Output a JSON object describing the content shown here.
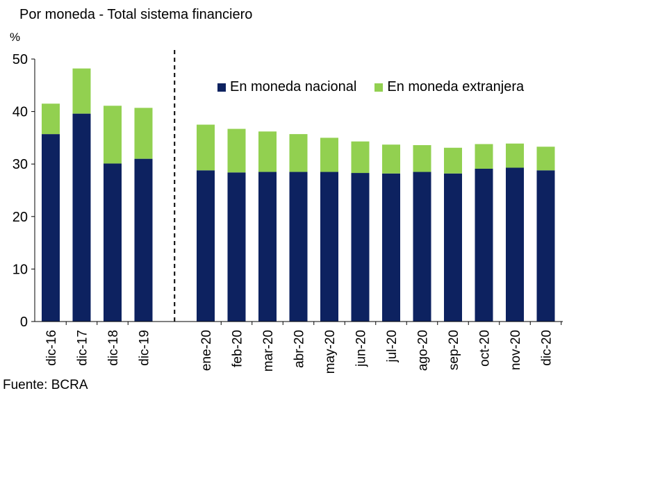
{
  "title": "Por moneda - Total sistema financiero",
  "source": "Fuente: BCRA",
  "chart_data": {
    "type": "bar",
    "stacked": true,
    "ylabel": "%",
    "ylim": [
      0,
      50
    ],
    "yticks": [
      0,
      10,
      20,
      30,
      40,
      50
    ],
    "categories": [
      "dic-16",
      "dic-17",
      "dic-18",
      "dic-19",
      "ene-20",
      "feb-20",
      "mar-20",
      "abr-20",
      "may-20",
      "jun-20",
      "jul-20",
      "ago-20",
      "sep-20",
      "oct-20",
      "nov-20",
      "dic-20"
    ],
    "series": [
      {
        "name": "En moneda nacional",
        "color": "#0d2260",
        "values": [
          35.7,
          39.6,
          30.1,
          31.0,
          28.8,
          28.4,
          28.5,
          28.5,
          28.5,
          28.3,
          28.2,
          28.5,
          28.2,
          29.1,
          29.3,
          28.8
        ]
      },
      {
        "name": "En moneda extranjera",
        "color": "#92d050",
        "values": [
          5.8,
          8.6,
          11.0,
          9.7,
          8.7,
          8.3,
          7.7,
          7.2,
          6.5,
          6.0,
          5.5,
          5.1,
          4.9,
          4.7,
          4.6,
          4.5
        ]
      }
    ],
    "legend_position": "top-right",
    "grid": false,
    "separator_after": "dic-19"
  }
}
